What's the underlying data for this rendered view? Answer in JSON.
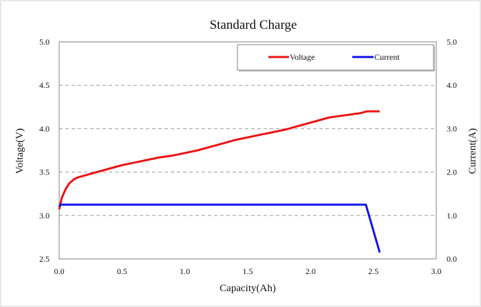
{
  "chart_data": {
    "type": "line",
    "title": "Standard Charge",
    "xlabel": "Capacity(Ah)",
    "ylabel": "Voltage(V)",
    "y2label": "Current(A)",
    "xlim": [
      0.0,
      3.0
    ],
    "ylim": [
      2.5,
      5.0
    ],
    "y2lim": [
      0.0,
      5.0
    ],
    "x_ticks": [
      "0.0",
      "0.5",
      "1.0",
      "1.5",
      "2.0",
      "2.5",
      "3.0"
    ],
    "y_ticks": [
      "2.5",
      "3.0",
      "3.5",
      "4.0",
      "4.5",
      "5.0"
    ],
    "y2_ticks": [
      "0.0",
      "1.0",
      "2.0",
      "3.0",
      "4.0",
      "5.0"
    ],
    "grid": "horizontal dashed",
    "legend_position": "top-right",
    "series": [
      {
        "name": "Voltage",
        "axis": "left",
        "color": "#ee1111",
        "x": [
          0.0,
          0.02,
          0.05,
          0.08,
          0.12,
          0.15,
          0.2,
          0.3,
          0.4,
          0.5,
          0.6,
          0.7,
          0.8,
          0.9,
          1.0,
          1.1,
          1.2,
          1.3,
          1.4,
          1.5,
          1.6,
          1.7,
          1.8,
          1.9,
          2.0,
          2.05,
          2.1,
          2.15,
          2.2,
          2.3,
          2.35,
          2.4,
          2.45,
          2.5,
          2.55
        ],
        "y": [
          3.07,
          3.2,
          3.3,
          3.37,
          3.42,
          3.44,
          3.46,
          3.5,
          3.54,
          3.58,
          3.61,
          3.64,
          3.67,
          3.69,
          3.72,
          3.75,
          3.79,
          3.83,
          3.87,
          3.9,
          3.93,
          3.96,
          3.99,
          4.03,
          4.07,
          4.09,
          4.11,
          4.13,
          4.14,
          4.16,
          4.17,
          4.18,
          4.2,
          4.2,
          4.2
        ]
      },
      {
        "name": "Current",
        "axis": "right",
        "color": "#1111ee",
        "x": [
          0.0,
          0.01,
          0.5,
          1.0,
          1.5,
          2.0,
          2.3,
          2.44,
          2.55
        ],
        "y": [
          1.2,
          1.25,
          1.25,
          1.25,
          1.25,
          1.25,
          1.25,
          1.25,
          0.15
        ]
      }
    ]
  }
}
